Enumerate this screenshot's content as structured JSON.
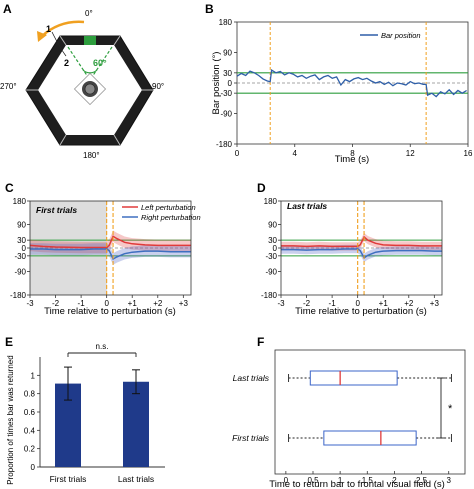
{
  "panels": {
    "A": {
      "label": "A",
      "arena_angles": [
        "0°",
        "90°",
        "180°",
        "270°"
      ],
      "markers": [
        "1",
        "2"
      ],
      "view_angle": "60°"
    },
    "B": {
      "label": "B",
      "ylabel": "Bar position (°)",
      "xlabel": "Time (s)",
      "legend": "Bar position",
      "yticks": [
        "180",
        "90",
        "30",
        "0",
        "-30",
        "-90",
        "-180"
      ],
      "xticks": [
        "0",
        "4",
        "8",
        "12",
        "16"
      ]
    },
    "C": {
      "label": "C",
      "title": "First trials",
      "legend": [
        "Left perturbation",
        "Right perturbation"
      ],
      "yticks": [
        "180",
        "90",
        "30",
        "0",
        "-30",
        "-90",
        "-180"
      ],
      "xticks": [
        "-3",
        "-2",
        "-1",
        "0",
        "+1",
        "+2",
        "+3"
      ],
      "xlabel": "Time relative to perturbation (s)"
    },
    "D": {
      "label": "D",
      "title": "Last trials",
      "yticks": [
        "180",
        "90",
        "30",
        "0",
        "-30",
        "-90",
        "-180"
      ],
      "xticks": [
        "-3",
        "-2",
        "-1",
        "0",
        "+1",
        "+2",
        "+3"
      ],
      "xlabel": "Time relative to perturbation (s)"
    },
    "E": {
      "label": "E",
      "ylabel": "Proportion of times bar was returned",
      "yticks": [
        "0",
        "0.2",
        "0.4",
        "0.6",
        "0.8",
        "1"
      ],
      "significance": "n.s."
    },
    "F": {
      "label": "F",
      "xlabel": "Time to return bar to frontal visual field (s)",
      "xticks": [
        "0",
        "0.5",
        "1",
        "1.5",
        "2",
        "2.5",
        "3"
      ],
      "significance": "*"
    }
  },
  "colors": {
    "bar_trace": "#2f5fa8",
    "left_pert": "#e03a3a",
    "right_pert": "#3f6fc0",
    "threshold": "#2e9e3e",
    "dashed_marker": "#f0a020",
    "bar_fill": "#1f3a8a",
    "box_edge": "#3b64c8",
    "median": "#e03a3a",
    "arena_edge": "#1a1a1a",
    "arrow": "#f0a020",
    "green_panel": "#2e9e3e"
  },
  "chart_data": [
    {
      "id": "B",
      "type": "line",
      "xlabel": "Time (s)",
      "ylabel": "Bar position (°)",
      "xlim": [
        0,
        16
      ],
      "ylim": [
        -180,
        180
      ],
      "threshold_lines": [
        30,
        -30
      ],
      "perturbation_times": [
        2.3,
        13.1
      ],
      "series": [
        {
          "name": "Bar position",
          "x": [
            0,
            0.3,
            0.6,
            0.9,
            1.2,
            1.5,
            1.8,
            2.1,
            2.3,
            2.4,
            2.7,
            3,
            3.3,
            3.6,
            3.9,
            4.2,
            4.5,
            4.8,
            5.1,
            5.4,
            5.7,
            6,
            6.3,
            6.6,
            6.9,
            7.2,
            7.5,
            7.8,
            8.1,
            8.4,
            8.7,
            9,
            9.3,
            9.6,
            9.9,
            10.2,
            10.5,
            10.8,
            11.1,
            11.4,
            11.7,
            12,
            12.3,
            12.6,
            12.9,
            13.1,
            13.2,
            13.5,
            13.8,
            14.1,
            14.4,
            14.7,
            15,
            15.3,
            15.6,
            15.9
          ],
          "y": [
            20,
            28,
            22,
            35,
            30,
            22,
            12,
            6,
            4,
            38,
            30,
            34,
            24,
            30,
            26,
            18,
            22,
            14,
            20,
            24,
            10,
            18,
            22,
            14,
            18,
            -6,
            10,
            4,
            12,
            16,
            10,
            14,
            6,
            0,
            4,
            -4,
            2,
            -8,
            0,
            -2,
            -6,
            4,
            -2,
            0,
            -4,
            -4,
            -36,
            -30,
            -40,
            -26,
            -32,
            -20,
            -34,
            -22,
            -30,
            -22
          ]
        }
      ]
    },
    {
      "id": "C",
      "type": "line",
      "title": "First trials",
      "xlabel": "Time relative to perturbation (s)",
      "xlim": [
        -3,
        3.3
      ],
      "ylim": [
        -180,
        180
      ],
      "threshold_lines": [
        30,
        -30
      ],
      "perturbation_times": [
        0,
        0.25
      ],
      "series": [
        {
          "name": "Left perturbation",
          "x": [
            -3,
            -2.5,
            -2,
            -1.5,
            -1,
            -0.5,
            0,
            0.1,
            0.25,
            0.4,
            0.7,
            1,
            1.5,
            2,
            2.5,
            3,
            3.3
          ],
          "y": [
            10,
            6,
            4,
            3,
            2,
            2,
            2,
            10,
            45,
            36,
            22,
            16,
            12,
            10,
            10,
            10,
            10
          ],
          "band": 22
        },
        {
          "name": "Right perturbation",
          "x": [
            -3,
            -2.5,
            -2,
            -1.5,
            -1,
            -0.5,
            0,
            0.1,
            0.25,
            0.4,
            0.7,
            1,
            1.5,
            2,
            2.5,
            3,
            3.3
          ],
          "y": [
            -4,
            -4,
            -6,
            -6,
            -6,
            -4,
            -4,
            -10,
            -42,
            -34,
            -22,
            -16,
            -12,
            -12,
            -14,
            -14,
            -14
          ],
          "band": 22
        }
      ]
    },
    {
      "id": "D",
      "type": "line",
      "title": "Last trials",
      "xlabel": "Time relative to perturbation (s)",
      "xlim": [
        -3,
        3.3
      ],
      "ylim": [
        -180,
        180
      ],
      "threshold_lines": [
        30,
        -30
      ],
      "perturbation_times": [
        0,
        0.25
      ],
      "series": [
        {
          "name": "Left perturbation",
          "x": [
            -3,
            -2.5,
            -2,
            -1.5,
            -1,
            -0.5,
            0,
            0.1,
            0.25,
            0.4,
            0.7,
            1,
            1.5,
            2,
            2.5,
            3,
            3.3
          ],
          "y": [
            8,
            8,
            6,
            8,
            6,
            6,
            6,
            12,
            42,
            30,
            18,
            12,
            10,
            10,
            8,
            8,
            8
          ],
          "band": 16
        },
        {
          "name": "Right perturbation",
          "x": [
            -3,
            -2.5,
            -2,
            -1.5,
            -1,
            -0.5,
            0,
            0.1,
            0.25,
            0.4,
            0.7,
            1,
            1.5,
            2,
            2.5,
            3,
            3.3
          ],
          "y": [
            -6,
            -6,
            -8,
            -6,
            -6,
            -4,
            -4,
            -10,
            -38,
            -28,
            -16,
            -12,
            -10,
            -10,
            -10,
            -12,
            -12
          ],
          "band": 16
        }
      ]
    },
    {
      "id": "E",
      "type": "bar",
      "categories": [
        "First trials",
        "Last trials"
      ],
      "values": [
        0.91,
        0.93
      ],
      "errors": [
        0.18,
        0.13
      ],
      "ylabel": "Proportion of times bar was returned",
      "ylim": [
        0,
        1.2
      ]
    },
    {
      "id": "F",
      "type": "box",
      "orientation": "horizontal",
      "categories": [
        "Last trials",
        "First trials"
      ],
      "xlabel": "Time to return bar to frontal visual field (s)",
      "xlim": [
        -0.2,
        3.3
      ],
      "boxes": [
        {
          "min": 0.05,
          "q1": 0.45,
          "median": 1.0,
          "q3": 2.05,
          "max": 3.05
        },
        {
          "min": 0.05,
          "q1": 0.7,
          "median": 1.75,
          "q3": 2.4,
          "max": 3.05
        }
      ]
    }
  ]
}
